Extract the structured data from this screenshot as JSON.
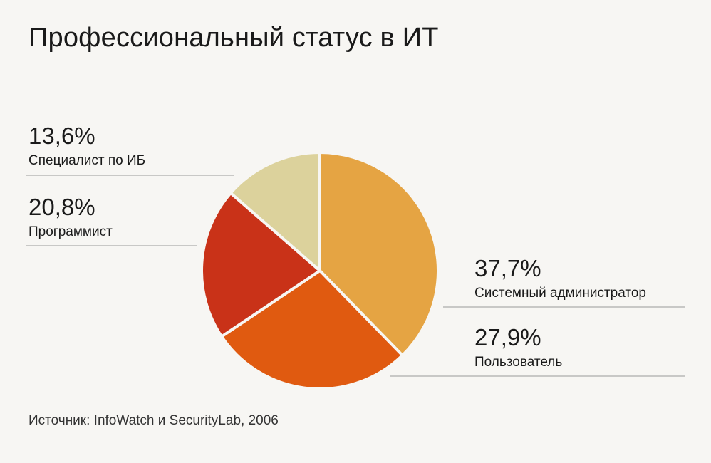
{
  "title": "Профессиональный статус в ИТ",
  "source": "Источник: InfoWatch и SecurityLab, 2006",
  "colors": {
    "background": "#f7f6f3",
    "line": "#9a9a9a"
  },
  "chart_data": {
    "type": "pie",
    "title": "Профессиональный статус в ИТ",
    "slices": [
      {
        "label": "Системный администратор",
        "value": 37.7,
        "value_label": "37,7%",
        "color": "#e5a443"
      },
      {
        "label": "Пользователь",
        "value": 27.9,
        "value_label": "27,9%",
        "color": "#e05a10"
      },
      {
        "label": "Программист",
        "value": 20.8,
        "value_label": "20,8%",
        "color": "#c93218"
      },
      {
        "label": "Специалист по ИБ",
        "value": 13.6,
        "value_label": "13,6%",
        "color": "#dcd29c"
      }
    ]
  }
}
